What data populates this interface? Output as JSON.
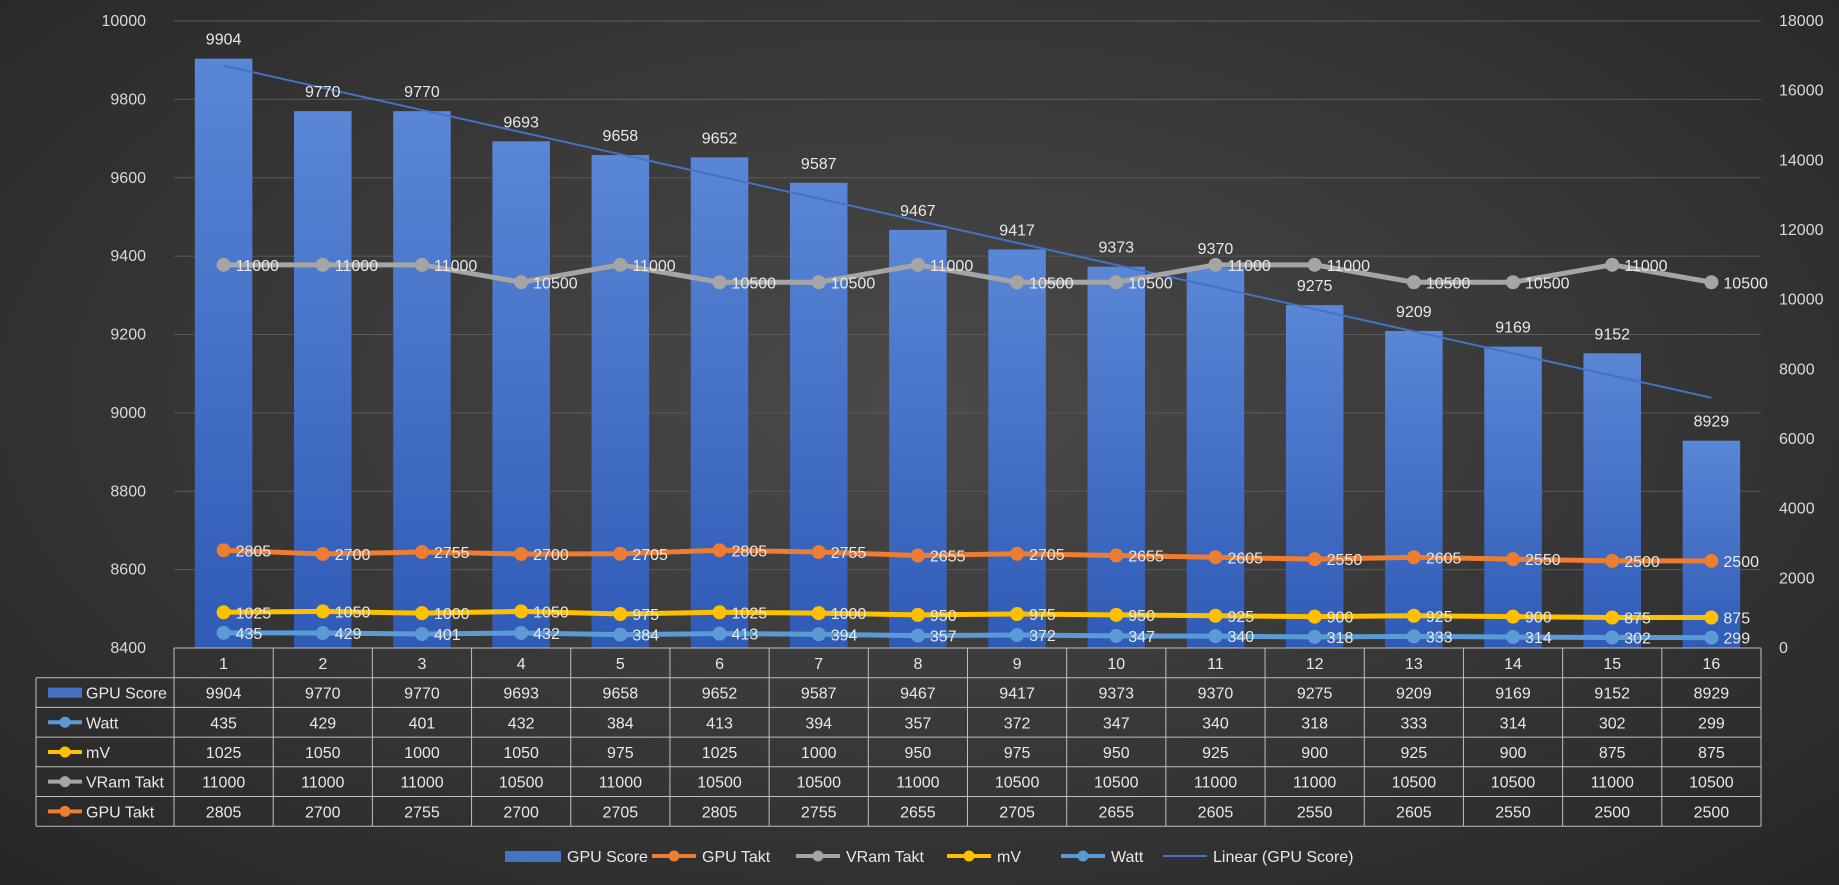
{
  "chart_data": {
    "type": "bar",
    "categories": [
      "1",
      "2",
      "3",
      "4",
      "5",
      "6",
      "7",
      "8",
      "9",
      "10",
      "11",
      "12",
      "13",
      "14",
      "15",
      "16"
    ],
    "primary_axis": {
      "min": 8400,
      "max": 10000,
      "step": 200,
      "ticks": [
        "8400",
        "8600",
        "8800",
        "9000",
        "9200",
        "9400",
        "9600",
        "9800",
        "10000"
      ]
    },
    "secondary_axis": {
      "min": 0,
      "max": 18000,
      "step": 2000,
      "ticks": [
        "0",
        "2000",
        "4000",
        "6000",
        "8000",
        "10000",
        "12000",
        "14000",
        "16000",
        "18000"
      ]
    },
    "grid": true,
    "legend_position": "bottom",
    "data_table": true,
    "series": [
      {
        "name": "GPU Score",
        "kind": "bar",
        "axis": "primary",
        "color": "#4472C4",
        "values": [
          9904,
          9770,
          9770,
          9693,
          9658,
          9652,
          9587,
          9467,
          9417,
          9373,
          9370,
          9275,
          9209,
          9169,
          9152,
          8929
        ]
      },
      {
        "name": "Watt",
        "kind": "line",
        "axis": "secondary",
        "color": "#5B9BD5",
        "values": [
          435,
          429,
          401,
          432,
          384,
          413,
          394,
          357,
          372,
          347,
          340,
          318,
          333,
          314,
          302,
          299
        ]
      },
      {
        "name": "mV",
        "kind": "line",
        "axis": "secondary",
        "color": "#FFC000",
        "values": [
          1025,
          1050,
          1000,
          1050,
          975,
          1025,
          1000,
          950,
          975,
          950,
          925,
          900,
          925,
          900,
          875,
          875
        ]
      },
      {
        "name": "VRam Takt",
        "kind": "line",
        "axis": "secondary",
        "color": "#A5A5A5",
        "values": [
          11000,
          11000,
          11000,
          10500,
          11000,
          10500,
          10500,
          11000,
          10500,
          10500,
          11000,
          11000,
          10500,
          10500,
          11000,
          10500
        ]
      },
      {
        "name": "GPU Takt",
        "kind": "line",
        "axis": "secondary",
        "color": "#ED7D31",
        "values": [
          2805,
          2700,
          2755,
          2700,
          2705,
          2805,
          2755,
          2655,
          2705,
          2655,
          2605,
          2550,
          2605,
          2550,
          2500,
          2500
        ]
      }
    ],
    "legend": [
      "GPU Score",
      "GPU Takt",
      "VRam Takt",
      "mV",
      "Watt",
      "Linear (GPU Score)"
    ],
    "trendline": {
      "name": "Linear (GPU Score)",
      "of": "GPU Score",
      "type": "linear",
      "color": "#4472C4"
    }
  }
}
